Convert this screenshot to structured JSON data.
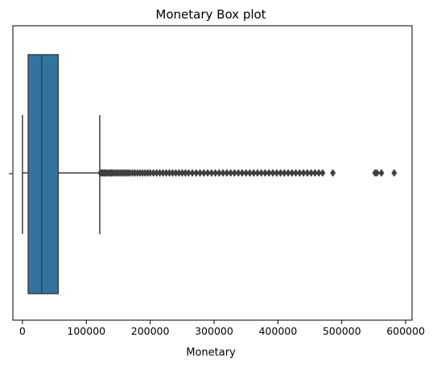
{
  "chart_data": {
    "type": "box",
    "title": "Monetary Box plot",
    "xlabel": "Monetary",
    "ylabel": "",
    "xlim": [
      -15000,
      610000
    ],
    "xticks": [
      0,
      100000,
      200000,
      300000,
      400000,
      500000,
      600000
    ],
    "xtick_labels": [
      "0",
      "100000",
      "200000",
      "300000",
      "400000",
      "500000",
      "600000"
    ],
    "grid": false,
    "colors": {
      "box_fill": "#3274a1",
      "lines": "#3f3f3f"
    },
    "box": {
      "whisker_low": 0,
      "q1": 9000,
      "median": 30000,
      "q3": 56000,
      "whisker_high": 121000
    },
    "outliers": [
      122000,
      124000,
      126000,
      128000,
      130000,
      132000,
      135000,
      137000,
      139000,
      141000,
      144000,
      147000,
      150000,
      153000,
      156000,
      159000,
      162000,
      165000,
      168000,
      172000,
      176000,
      180000,
      184000,
      188000,
      192000,
      196000,
      200000,
      205000,
      210000,
      215000,
      220000,
      225000,
      230000,
      235000,
      240000,
      245000,
      250000,
      255000,
      260000,
      266000,
      272000,
      278000,
      284000,
      290000,
      296000,
      302000,
      308000,
      314000,
      320000,
      326000,
      332000,
      338000,
      344000,
      350000,
      356000,
      362000,
      368000,
      374000,
      380000,
      386000,
      392000,
      398000,
      404000,
      410000,
      416000,
      422000,
      428000,
      434000,
      440000,
      446000,
      452000,
      458000,
      464000,
      470000,
      486000,
      552000,
      555000,
      562000,
      582000
    ]
  }
}
